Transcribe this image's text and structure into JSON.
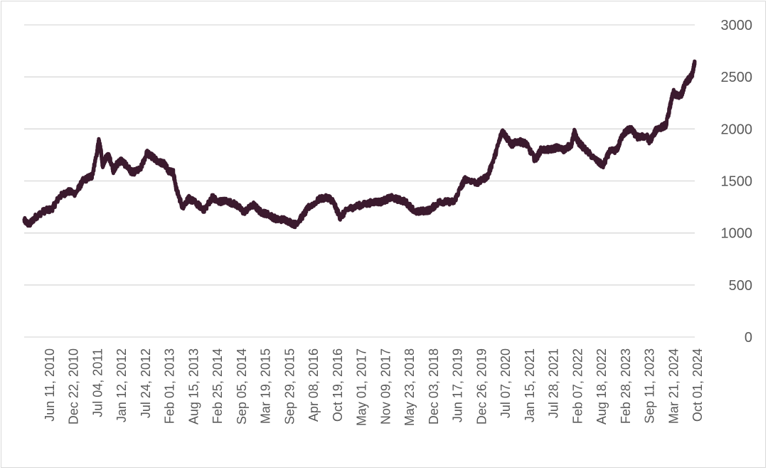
{
  "chart_data": {
    "type": "line",
    "title": "",
    "xlabel": "",
    "ylabel": "",
    "ylim": [
      0,
      3000
    ],
    "y_ticks": [
      0,
      500,
      1000,
      1500,
      2000,
      2500,
      3000
    ],
    "y_axis_side": "right",
    "grid": "horizontal",
    "legend": "none",
    "line_color": "#3b1a2e",
    "x_tick_labels": [
      "Jun 11, 2010",
      "Dec 22, 2010",
      "Jul 04, 2011",
      "Jan 12, 2012",
      "Jul 24, 2012",
      "Feb 01, 2013",
      "Aug 15, 2013",
      "Feb 25, 2014",
      "Sep 05, 2014",
      "Mar 19, 2015",
      "Sep 29, 2015",
      "Apr 08, 2016",
      "Oct 19, 2016",
      "May 01, 2017",
      "Nov 09, 2017",
      "May 23, 2018",
      "Dec 03, 2018",
      "Jun 17, 2019",
      "Dec 26, 2019",
      "Jul 07, 2020",
      "Jan 15, 2021",
      "Jul 28, 2021",
      "Feb 07, 2022",
      "Aug 18, 2022",
      "Feb 28, 2023",
      "Sep 11, 2023",
      "Mar 21, 2024",
      "Oct 01, 2024"
    ],
    "series": [
      {
        "x": [
          "2010-01-04",
          "2010-02-15",
          "2010-04-01",
          "2010-06-11",
          "2010-08-15",
          "2010-10-15",
          "2010-12-22",
          "2011-02-20",
          "2011-04-20",
          "2011-06-15",
          "2011-07-04",
          "2011-08-10",
          "2011-08-25",
          "2011-09-10",
          "2011-09-25",
          "2011-10-20",
          "2011-11-15",
          "2011-12-20",
          "2012-01-12",
          "2012-02-20",
          "2012-04-01",
          "2012-05-20",
          "2012-07-24",
          "2012-09-15",
          "2012-10-05",
          "2012-11-15",
          "2012-12-20",
          "2013-02-01",
          "2013-03-10",
          "2013-04-15",
          "2013-05-10",
          "2013-06-28",
          "2013-08-15",
          "2013-10-01",
          "2013-12-20",
          "2014-02-25",
          "2014-04-01",
          "2014-06-15",
          "2014-09-05",
          "2014-11-01",
          "2015-01-20",
          "2015-03-19",
          "2015-05-15",
          "2015-07-25",
          "2015-09-29",
          "2015-12-17",
          "2016-02-10",
          "2016-04-08",
          "2016-07-10",
          "2016-09-15",
          "2016-10-19",
          "2016-12-15",
          "2017-02-15",
          "2017-05-01",
          "2017-07-15",
          "2017-09-15",
          "2017-11-09",
          "2018-01-25",
          "2018-04-01",
          "2018-05-23",
          "2018-08-16",
          "2018-10-01",
          "2018-12-03",
          "2019-02-20",
          "2019-04-15",
          "2019-06-17",
          "2019-08-15",
          "2019-09-15",
          "2019-12-26",
          "2020-03-15",
          "2020-05-15",
          "2020-07-07",
          "2020-08-06",
          "2020-09-20",
          "2020-11-15",
          "2021-01-15",
          "2021-03-31",
          "2021-05-15",
          "2021-07-28",
          "2021-09-15",
          "2021-11-15",
          "2022-01-15",
          "2022-02-07",
          "2022-03-08",
          "2022-05-15",
          "2022-08-18",
          "2022-09-28",
          "2022-11-15",
          "2023-01-15",
          "2023-02-28",
          "2023-04-13",
          "2023-05-05",
          "2023-06-30",
          "2023-09-11",
          "2023-10-05",
          "2023-12-01",
          "2024-01-15",
          "2024-02-14",
          "2024-03-21",
          "2024-04-12",
          "2024-05-20",
          "2024-06-20",
          "2024-07-17",
          "2024-08-20",
          "2024-09-10",
          "2024-10-01"
        ],
        "y": [
          1120,
          1080,
          1150,
          1210,
          1230,
          1350,
          1400,
          1380,
          1500,
          1540,
          1550,
          1760,
          1880,
          1820,
          1650,
          1720,
          1740,
          1600,
          1650,
          1700,
          1650,
          1580,
          1610,
          1770,
          1750,
          1720,
          1680,
          1670,
          1600,
          1580,
          1420,
          1250,
          1330,
          1300,
          1220,
          1350,
          1300,
          1310,
          1270,
          1200,
          1270,
          1200,
          1180,
          1130,
          1130,
          1080,
          1150,
          1250,
          1330,
          1340,
          1300,
          1150,
          1230,
          1260,
          1280,
          1300,
          1300,
          1340,
          1320,
          1300,
          1200,
          1210,
          1220,
          1300,
          1300,
          1300,
          1450,
          1520,
          1480,
          1550,
          1760,
          1980,
          1930,
          1850,
          1880,
          1860,
          1700,
          1800,
          1800,
          1820,
          1800,
          1850,
          1970,
          1880,
          1790,
          1680,
          1650,
          1780,
          1800,
          1940,
          1990,
          2000,
          1920,
          1930,
          1880,
          2000,
          2020,
          2040,
          2240,
          2350,
          2310,
          2340,
          2450,
          2480,
          2520,
          2650
        ]
      }
    ]
  }
}
